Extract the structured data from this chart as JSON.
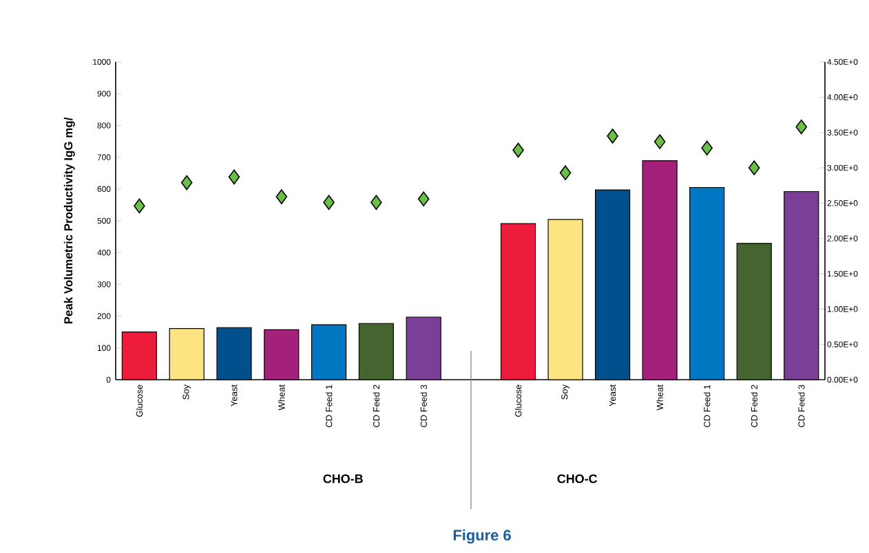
{
  "chart_data": [
    {
      "type": "bar",
      "categories": [
        "Glucose",
        "Soy",
        "Yeast",
        "Wheat",
        "CD Feed 1",
        "CD Feed 2",
        "CD Feed 3"
      ],
      "values": [
        150,
        161,
        164,
        157,
        173,
        177,
        197
      ],
      "colors": [
        "#ed1c3a",
        "#fee382",
        "#00508e",
        "#a3207b",
        "#0077c0",
        "#456530",
        "#7b3f98"
      ],
      "series": [
        {
          "type": "scatter",
          "axis": "y2",
          "color": "#6abf45",
          "marker": "diamond",
          "values": [
            2.46,
            2.79,
            2.87,
            2.59,
            2.51,
            2.51,
            2.56
          ]
        }
      ],
      "xlabel": "CHO-B",
      "ylabel": "Peak Volumetric Productivity IgG mg/",
      "ylim": [
        0,
        1000
      ],
      "yticks": [
        0,
        100,
        200,
        300,
        400,
        500,
        600,
        700,
        800,
        900,
        1000
      ],
      "y2lim": [
        0,
        4.5
      ],
      "tick_labels": [
        "x",
        "y"
      ]
    },
    {
      "type": "bar",
      "categories": [
        "Glucose",
        "Soy",
        "Yeast",
        "Wheat",
        "CD Feed 1",
        "CD Feed 2",
        "CD Feed 3"
      ],
      "values": [
        491,
        504,
        597,
        689,
        605,
        429,
        592
      ],
      "colors": [
        "#ed1c3a",
        "#fee382",
        "#00508e",
        "#a3207b",
        "#0077c0",
        "#456530",
        "#7b3f98"
      ],
      "series": [
        {
          "type": "scatter",
          "axis": "y2",
          "color": "#6abf45",
          "marker": "diamond",
          "values": [
            3.25,
            2.93,
            3.45,
            3.37,
            3.28,
            3.0,
            3.58
          ]
        }
      ],
      "xlabel": "CHO-C",
      "ylim": [
        0,
        1000
      ],
      "y2lim": [
        0,
        4.5
      ],
      "y2ticks": [
        {
          "value": 0,
          "label": "0.00E+0"
        },
        {
          "value": 0.5,
          "label": "0.50E+0"
        },
        {
          "value": 1.0,
          "label": "1.00E+0"
        },
        {
          "value": 1.5,
          "label": "1.50E+0"
        },
        {
          "value": 2.0,
          "label": "2.00E+0"
        },
        {
          "value": 2.5,
          "label": "2.50E+0"
        },
        {
          "value": 3.0,
          "label": "3.00E+0"
        },
        {
          "value": 3.5,
          "label": "3.50E+0"
        },
        {
          "value": 4.0,
          "label": "4.00E+0"
        },
        {
          "value": 4.5,
          "label": "4.50E+0"
        }
      ],
      "annotations": [
        "Figure 6"
      ],
      "tick_labels": [
        "x",
        "y2"
      ]
    }
  ]
}
